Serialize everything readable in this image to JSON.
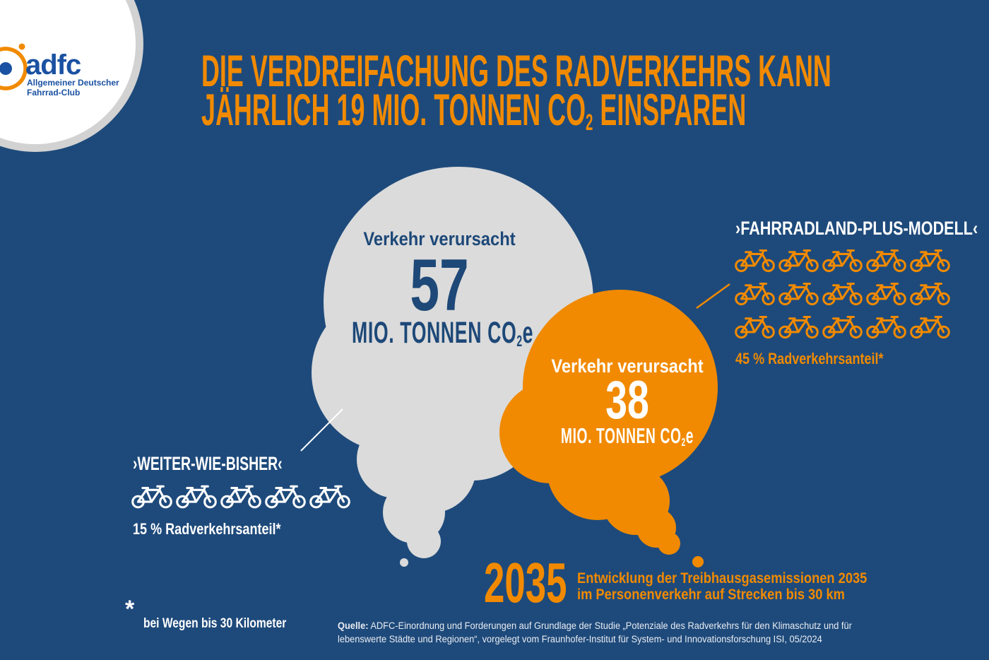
{
  "colors": {
    "background": "#1E4A7B",
    "orange": "#F18A00",
    "cloud_gray": "#DBDBDB",
    "text_blue": "#1D4878",
    "logo_blue": "#1A51A2",
    "white": "#FFFFFF",
    "source_text": "#E9ECF2",
    "logo_ring_gray": "#D2D2D2"
  },
  "logo": {
    "wordmark": "adfc",
    "tagline_line1": "Allgemeiner Deutscher",
    "tagline_line2": "Fahrrad-Club"
  },
  "headline": {
    "line1": "DIE VERDREIFACHUNG DES RADVERKEHRS KANN",
    "line2_pre": "JÄHRLICH 19 MIO. TONNEN CO",
    "line2_sub": "2",
    "line2_post": " EINSPAREN"
  },
  "bubbles": {
    "current": {
      "label": "Verkehr verursacht",
      "value": "57",
      "unit_pre": "MIO. TONNEN CO",
      "unit_sub": "2",
      "unit_post": "e"
    },
    "plus": {
      "label": "Verkehr verursacht",
      "value": "38",
      "unit_pre": "MIO. TONNEN CO",
      "unit_sub": "2",
      "unit_post": "e"
    }
  },
  "scenarios": {
    "bau": {
      "name": "›WEITER-WIE-BISHER‹",
      "share": "15 % Radverkehrsanteil*",
      "bike_count": 5
    },
    "plus": {
      "name": "›FAHRRADLAND-PLUS-MODELL‹",
      "share": "45 % Radverkehrsanteil*",
      "bike_rows": [
        5,
        5,
        5
      ]
    }
  },
  "footer": {
    "year": "2035",
    "caption_line1": "Entwicklung der Treibhausgasemissionen 2035",
    "caption_line2": "im Personenverkehr auf Strecken bis 30 km",
    "footnote_mark": "*",
    "footnote_text": "bei Wegen bis 30 Kilometer",
    "source_label": "Quelle:",
    "source_line1": " ADFC-Einordnung und Forderungen auf Grundlage der Studie „Potenziale des Radverkehrs für den Klimaschutz und für",
    "source_line2": "lebenswerte Städte und Regionen“, vorgelegt vom Fraunhofer-Institut für System- und Innovationsforschung ISI, 05/2024"
  },
  "chart_data": {
    "type": "pictogram",
    "title": "Die Verdreifachung des Radverkehrs kann jährlich 19 Mio. Tonnen CO2 einsparen",
    "unit": "Mio. Tonnen CO2e",
    "year": 2035,
    "series": [
      {
        "name": "Weiter-wie-bisher",
        "emissions_mio_tonnen_co2e": 57,
        "radverkehrsanteil_prozent": 15,
        "bike_icons": 5
      },
      {
        "name": "Fahrradland-Plus-Modell",
        "emissions_mio_tonnen_co2e": 38,
        "radverkehrsanteil_prozent": 45,
        "bike_icons": 15
      }
    ],
    "savings_mio_tonnen_co2e": 19,
    "note": "bei Wegen bis 30 Kilometer"
  }
}
